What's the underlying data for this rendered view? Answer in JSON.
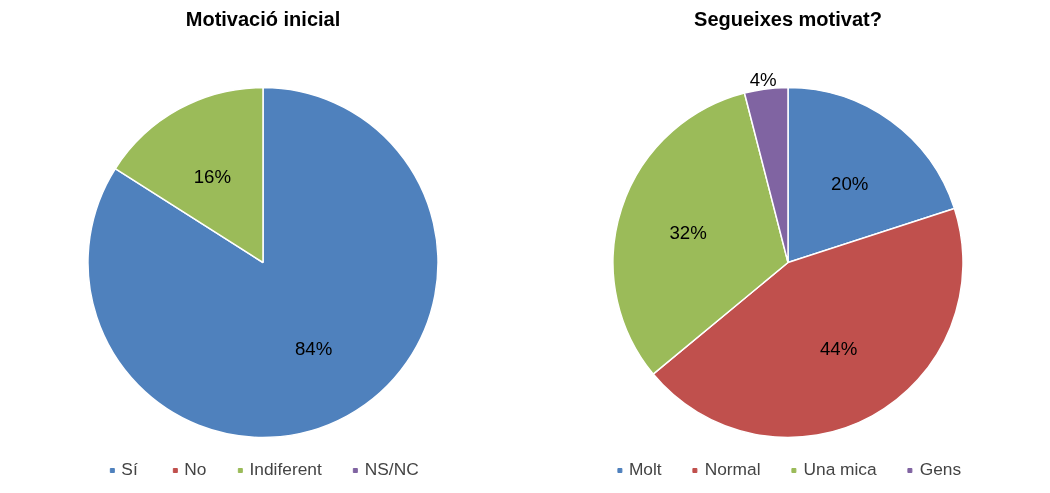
{
  "chart_data": [
    {
      "type": "pie",
      "title": "Motivació inicial",
      "categories": [
        "Sí",
        "No",
        "Indiferent",
        "NS/NC"
      ],
      "values": [
        84,
        0,
        16,
        0
      ],
      "colors": [
        "#4f81bd",
        "#c0504d",
        "#9bbb59",
        "#8064a2"
      ],
      "value_labels": [
        "84%",
        null,
        "16%",
        null
      ],
      "legend": "bottom"
    },
    {
      "type": "pie",
      "title": "Segueixes motivat?",
      "categories": [
        "Molt",
        "Normal",
        "Una mica",
        "Gens"
      ],
      "values": [
        20,
        44,
        32,
        4
      ],
      "colors": [
        "#4f81bd",
        "#c0504d",
        "#9bbb59",
        "#8064a2"
      ],
      "value_labels": [
        "20%",
        "44%",
        "32%",
        "4%"
      ],
      "legend": "bottom"
    }
  ]
}
